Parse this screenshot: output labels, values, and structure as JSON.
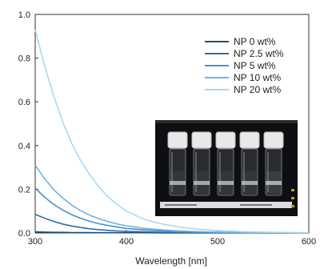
{
  "chart_data": {
    "type": "line",
    "xlabel": "Wavelength [nm]",
    "ylabel": "",
    "xlim": [
      300,
      600
    ],
    "ylim": [
      0,
      1.0
    ],
    "xticks": [
      300,
      400,
      500,
      600
    ],
    "yticks": [
      0.0,
      0.2,
      0.4,
      0.6,
      0.8,
      1.0
    ],
    "xtick_labels": [
      "300",
      "400",
      "500",
      "600"
    ],
    "ytick_labels": [
      "0.0",
      "0.2",
      "0.4",
      "0.6",
      "0.8",
      "1.0"
    ],
    "grid": false,
    "legend_position": "top-right",
    "x": [
      300,
      310,
      320,
      330,
      340,
      350,
      360,
      370,
      380,
      390,
      400,
      420,
      440,
      460,
      480,
      500,
      530,
      560,
      600
    ],
    "series": [
      {
        "name": "NP 0 wt%",
        "color": "#1f4e79",
        "values": [
          0.005,
          0.004,
          0.003,
          0.003,
          0.002,
          0.002,
          0.002,
          0.001,
          0.001,
          0.001,
          0.001,
          0.001,
          0.0,
          0.0,
          0.0,
          0.0,
          0.0,
          0.0,
          0.0
        ]
      },
      {
        "name": "NP 2.5 wt%",
        "color": "#2f6ea8",
        "values": [
          0.085,
          0.068,
          0.053,
          0.041,
          0.032,
          0.025,
          0.019,
          0.015,
          0.012,
          0.009,
          0.007,
          0.005,
          0.003,
          0.002,
          0.002,
          0.001,
          0.001,
          0.0,
          0.0
        ]
      },
      {
        "name": "NP 5 wt%",
        "color": "#4a90d0",
        "values": [
          0.205,
          0.165,
          0.132,
          0.105,
          0.084,
          0.067,
          0.053,
          0.042,
          0.034,
          0.027,
          0.021,
          0.014,
          0.009,
          0.006,
          0.004,
          0.003,
          0.002,
          0.001,
          0.0
        ]
      },
      {
        "name": "NP 10 wt%",
        "color": "#6fb2e6",
        "values": [
          0.31,
          0.25,
          0.2,
          0.16,
          0.128,
          0.102,
          0.081,
          0.065,
          0.052,
          0.041,
          0.033,
          0.021,
          0.014,
          0.009,
          0.006,
          0.004,
          0.002,
          0.001,
          0.0
        ]
      },
      {
        "name": "NP 20 wt%",
        "color": "#a9d8f5",
        "values": [
          0.93,
          0.77,
          0.63,
          0.51,
          0.41,
          0.33,
          0.265,
          0.21,
          0.165,
          0.13,
          0.1,
          0.062,
          0.04,
          0.026,
          0.017,
          0.011,
          0.006,
          0.003,
          0.001
        ]
      }
    ]
  },
  "inset_photo": {
    "description_icon": "vials-photo-icon",
    "vial_count": 5
  }
}
